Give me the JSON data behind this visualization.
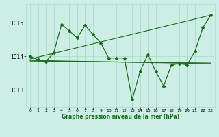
{
  "background_color": "#cceee4",
  "grid_color": "#aaddcc",
  "line_color": "#1a6b1a",
  "title": "Graphe pression niveau de la mer (hPa)",
  "xlim": [
    -0.5,
    23.5
  ],
  "ylim": [
    1012.5,
    1015.55
  ],
  "yticks": [
    1013,
    1014,
    1015
  ],
  "xticks": [
    0,
    1,
    2,
    3,
    4,
    5,
    6,
    7,
    8,
    9,
    10,
    11,
    12,
    13,
    14,
    15,
    16,
    17,
    18,
    19,
    20,
    21,
    22,
    23
  ],
  "series1_x": [
    0,
    1,
    2,
    3,
    4,
    5,
    6,
    7,
    8,
    9,
    10,
    11,
    12,
    13,
    14,
    15,
    16,
    17,
    18,
    19,
    20,
    21,
    22,
    23
  ],
  "series1_y": [
    1014.0,
    1013.9,
    1013.85,
    1014.1,
    1014.95,
    1014.75,
    1014.55,
    1014.92,
    1014.65,
    1014.4,
    1013.95,
    1013.95,
    1013.95,
    1012.72,
    1013.55,
    1014.05,
    1013.55,
    1013.12,
    1013.75,
    1013.78,
    1013.75,
    1014.15,
    1014.85,
    1015.22
  ],
  "series2_x": [
    0,
    23
  ],
  "series2_y": [
    1013.92,
    1015.22
  ],
  "series3_x": [
    0,
    23
  ],
  "series3_y": [
    1013.88,
    1013.78
  ],
  "series4_x": [
    0,
    23
  ],
  "series4_y": [
    1013.86,
    1013.8
  ]
}
